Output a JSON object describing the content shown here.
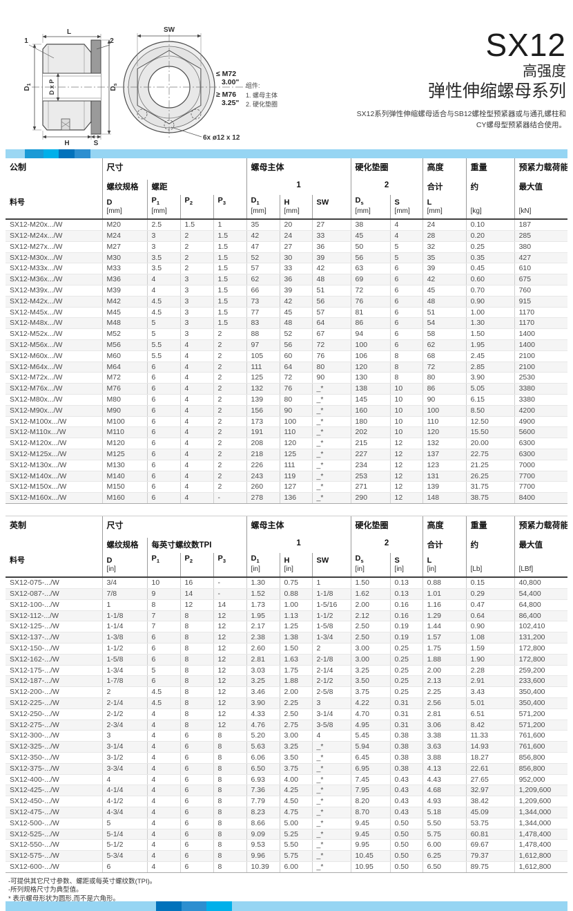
{
  "page": {
    "title": "SX12",
    "subtitle1": "高强度",
    "subtitle2": "弹性伸缩螺母系列",
    "description_line1": "SX12系列弹性伸缩螺母适合与SB12螺栓型预紧器或与通孔螺柱和",
    "description_line2": "CY螺母型预紧器结合使用。"
  },
  "drawing": {
    "dim_L": "L",
    "dim_SW": "SW",
    "callout_1": "1",
    "callout_2": "2",
    "dim_D1_main": "D",
    "dim_D1_sub": "1",
    "dim_DxP": "D x P",
    "dim_Ds_main": "D",
    "dim_Ds_sub": "s",
    "dim_H": "H",
    "dim_S": "S",
    "thread_small": "≤ M72",
    "thread_small_size": "3.00\"",
    "thread_large": "≥ M76",
    "thread_large_size": "3.25\"",
    "holes_note": "6x ø12 x 12",
    "components_title": "组件:",
    "component_1": "1. 螺母主体",
    "component_2": "2. 硬化垫圈"
  },
  "colors": {
    "bar_segments": [
      "#9bd7f3",
      "#1b9ad6",
      "#00b0ea",
      "#0272bb",
      "#2d8fd0",
      "#96d5f3"
    ],
    "header_rule": "#3f3f3f"
  },
  "metric_table": {
    "region_label": "公制",
    "part_col_label": "料号",
    "groups": [
      {
        "label": "尺寸",
        "span": 4
      },
      {
        "label": "螺母主体",
        "span": 3
      },
      {
        "label": "硬化垫圈",
        "span": 2
      },
      {
        "label": "高度",
        "span": 1
      },
      {
        "label": "重量",
        "span": 1
      },
      {
        "label": "预紧力载荷能力",
        "span": 1
      }
    ],
    "subgroups": [
      {
        "label": "螺纹规格",
        "span": 1
      },
      {
        "label": "螺距",
        "span": 3
      },
      {
        "label": "1",
        "span": 3,
        "center": true
      },
      {
        "label": "2",
        "span": 2,
        "center": true
      },
      {
        "label": "合计",
        "span": 1
      },
      {
        "label": "约",
        "span": 1
      },
      {
        "label": "最大值",
        "span": 1
      }
    ],
    "columns": [
      {
        "label": "料号",
        "sub": "",
        "unit": ""
      },
      {
        "label": "D",
        "sub": "",
        "unit": "[mm]"
      },
      {
        "label": "P",
        "sub": "1",
        "unit": "[mm]"
      },
      {
        "label": "P",
        "sub": "2",
        "unit": ""
      },
      {
        "label": "P",
        "sub": "3",
        "unit": ""
      },
      {
        "label": "D",
        "sub": "1",
        "unit": "[mm]"
      },
      {
        "label": "H",
        "sub": "",
        "unit": "[mm]"
      },
      {
        "label": "SW",
        "sub": "",
        "unit": ""
      },
      {
        "label": "D",
        "sub": "s",
        "unit": "[mm]"
      },
      {
        "label": "S",
        "sub": "",
        "unit": "[mm]"
      },
      {
        "label": "L",
        "sub": "",
        "unit": "[mm]"
      },
      {
        "label": "",
        "sub": "",
        "unit": "[kg]"
      },
      {
        "label": "",
        "sub": "",
        "unit": "[kN]"
      }
    ],
    "rows": [
      [
        "SX12-M20x.../W",
        "M20",
        "2.5",
        "1.5",
        "1",
        "35",
        "20",
        "27",
        "38",
        "4",
        "24",
        "0.10",
        "187"
      ],
      [
        "SX12-M24x.../W",
        "M24",
        "3",
        "2",
        "1.5",
        "42",
        "24",
        "33",
        "45",
        "4",
        "28",
        "0.20",
        "285"
      ],
      [
        "SX12-M27x.../W",
        "M27",
        "3",
        "2",
        "1.5",
        "47",
        "27",
        "36",
        "50",
        "5",
        "32",
        "0.25",
        "380"
      ],
      [
        "SX12-M30x.../W",
        "M30",
        "3.5",
        "2",
        "1.5",
        "52",
        "30",
        "39",
        "56",
        "5",
        "35",
        "0.35",
        "427"
      ],
      [
        "SX12-M33x.../W",
        "M33",
        "3.5",
        "2",
        "1.5",
        "57",
        "33",
        "42",
        "63",
        "6",
        "39",
        "0.45",
        "610"
      ],
      [
        "SX12-M36x.../W",
        "M36",
        "4",
        "3",
        "1.5",
        "62",
        "36",
        "48",
        "69",
        "6",
        "42",
        "0.60",
        "675"
      ],
      [
        "SX12-M39x.../W",
        "M39",
        "4",
        "3",
        "1.5",
        "66",
        "39",
        "51",
        "72",
        "6",
        "45",
        "0.70",
        "760"
      ],
      [
        "SX12-M42x.../W",
        "M42",
        "4.5",
        "3",
        "1.5",
        "73",
        "42",
        "56",
        "76",
        "6",
        "48",
        "0.90",
        "915"
      ],
      [
        "SX12-M45x.../W",
        "M45",
        "4.5",
        "3",
        "1.5",
        "77",
        "45",
        "57",
        "81",
        "6",
        "51",
        "1.00",
        "1170"
      ],
      [
        "SX12-M48x.../W",
        "M48",
        "5",
        "3",
        "1.5",
        "83",
        "48",
        "64",
        "86",
        "6",
        "54",
        "1.30",
        "1170"
      ],
      [
        "SX12-M52x.../W",
        "M52",
        "5",
        "3",
        "2",
        "88",
        "52",
        "67",
        "94",
        "6",
        "58",
        "1.50",
        "1400"
      ],
      [
        "SX12-M56x.../W",
        "M56",
        "5.5",
        "4",
        "2",
        "97",
        "56",
        "72",
        "100",
        "6",
        "62",
        "1.95",
        "1400"
      ],
      [
        "SX12-M60x.../W",
        "M60",
        "5.5",
        "4",
        "2",
        "105",
        "60",
        "76",
        "106",
        "8",
        "68",
        "2.45",
        "2100"
      ],
      [
        "SX12-M64x.../W",
        "M64",
        "6",
        "4",
        "2",
        "111",
        "64",
        "80",
        "120",
        "8",
        "72",
        "2.85",
        "2100"
      ],
      [
        "SX12-M72x.../W",
        "M72",
        "6",
        "4",
        "2",
        "125",
        "72",
        "90",
        "130",
        "8",
        "80",
        "3.90",
        "2530"
      ],
      [
        "SX12-M76x.../W",
        "M76",
        "6",
        "4",
        "2",
        "132",
        "76",
        "_*",
        "138",
        "10",
        "86",
        "5.05",
        "3380"
      ],
      [
        "SX12-M80x.../W",
        "M80",
        "6",
        "4",
        "2",
        "139",
        "80",
        "_*",
        "145",
        "10",
        "90",
        "6.15",
        "3380"
      ],
      [
        "SX12-M90x.../W",
        "M90",
        "6",
        "4",
        "2",
        "156",
        "90",
        "_*",
        "160",
        "10",
        "100",
        "8.50",
        "4200"
      ],
      [
        "SX12-M100x.../W",
        "M100",
        "6",
        "4",
        "2",
        "173",
        "100",
        "_*",
        "180",
        "10",
        "110",
        "12.50",
        "4900"
      ],
      [
        "SX12-M110x.../W",
        "M110",
        "6",
        "4",
        "2",
        "191",
        "110",
        "_*",
        "202",
        "10",
        "120",
        "15.50",
        "5600"
      ],
      [
        "SX12-M120x.../W",
        "M120",
        "6",
        "4",
        "2",
        "208",
        "120",
        "_*",
        "215",
        "12",
        "132",
        "20.00",
        "6300"
      ],
      [
        "SX12-M125x.../W",
        "M125",
        "6",
        "4",
        "2",
        "218",
        "125",
        "_*",
        "227",
        "12",
        "137",
        "22.75",
        "6300"
      ],
      [
        "SX12-M130x.../W",
        "M130",
        "6",
        "4",
        "2",
        "226",
        "111",
        "_*",
        "234",
        "12",
        "123",
        "21.25",
        "7000"
      ],
      [
        "SX12-M140x.../W",
        "M140",
        "6",
        "4",
        "2",
        "243",
        "119",
        "_*",
        "253",
        "12",
        "131",
        "26.25",
        "7700"
      ],
      [
        "SX12-M150x.../W",
        "M150",
        "6",
        "4",
        "2",
        "260",
        "127",
        "_*",
        "271",
        "12",
        "139",
        "31.75",
        "7700"
      ],
      [
        "SX12-M160x.../W",
        "M160",
        "6",
        "4",
        "-",
        "278",
        "136",
        "_*",
        "290",
        "12",
        "148",
        "38.75",
        "8400"
      ]
    ]
  },
  "imperial_table": {
    "region_label": "英制",
    "part_col_label": "料号",
    "groups": [
      {
        "label": "尺寸",
        "span": 4
      },
      {
        "label": "螺母主体",
        "span": 3
      },
      {
        "label": "硬化垫圈",
        "span": 2
      },
      {
        "label": "高度",
        "span": 1
      },
      {
        "label": "重量",
        "span": 1
      },
      {
        "label": "预紧力载荷能力",
        "span": 1
      }
    ],
    "subgroups": [
      {
        "label": "螺纹规格",
        "span": 1
      },
      {
        "label": "每英寸螺纹数TPI",
        "span": 3
      },
      {
        "label": "1",
        "span": 3,
        "center": true
      },
      {
        "label": "2",
        "span": 2,
        "center": true
      },
      {
        "label": "合计",
        "span": 1
      },
      {
        "label": "约",
        "span": 1
      },
      {
        "label": "最大值",
        "span": 1
      }
    ],
    "columns": [
      {
        "label": "料号",
        "sub": "",
        "unit": ""
      },
      {
        "label": "D",
        "sub": "",
        "unit": "[in]"
      },
      {
        "label": "P",
        "sub": "1",
        "unit": ""
      },
      {
        "label": "P",
        "sub": "2",
        "unit": ""
      },
      {
        "label": "P",
        "sub": "3",
        "unit": ""
      },
      {
        "label": "D",
        "sub": "1",
        "unit": "[in]"
      },
      {
        "label": "H",
        "sub": "",
        "unit": "[in]"
      },
      {
        "label": "SW",
        "sub": "",
        "unit": ""
      },
      {
        "label": "D",
        "sub": "s",
        "unit": "[in]"
      },
      {
        "label": "S",
        "sub": "",
        "unit": "[in]"
      },
      {
        "label": "L",
        "sub": "",
        "unit": "[in]"
      },
      {
        "label": "",
        "sub": "",
        "unit": "[Lb]"
      },
      {
        "label": "",
        "sub": "",
        "unit": "[LBf]"
      }
    ],
    "rows": [
      [
        "SX12-075-.../W",
        "3/4",
        "10",
        "16",
        "-",
        "1.30",
        "0.75",
        "1",
        "1.50",
        "0.13",
        "0.88",
        "0.15",
        "40,800"
      ],
      [
        "SX12-087-.../W",
        "7/8",
        "9",
        "14",
        "-",
        "1.52",
        "0.88",
        "1-1/8",
        "1.62",
        "0.13",
        "1.01",
        "0.29",
        "54,400"
      ],
      [
        "SX12-100-.../W",
        "1",
        "8",
        "12",
        "14",
        "1.73",
        "1.00",
        "1-5/16",
        "2.00",
        "0.16",
        "1.16",
        "0.47",
        "64,800"
      ],
      [
        "SX12-112-.../W",
        "1-1/8",
        "7",
        "8",
        "12",
        "1.95",
        "1.13",
        "1-1/2",
        "2.12",
        "0.16",
        "1.29",
        "0.64",
        "86,400"
      ],
      [
        "SX12-125-.../W",
        "1-1/4",
        "7",
        "8",
        "12",
        "2.17",
        "1.25",
        "1-5/8",
        "2.50",
        "0.19",
        "1.44",
        "0.90",
        "102,410"
      ],
      [
        "SX12-137-.../W",
        "1-3/8",
        "6",
        "8",
        "12",
        "2.38",
        "1.38",
        "1-3/4",
        "2.50",
        "0.19",
        "1.57",
        "1.08",
        "131,200"
      ],
      [
        "SX12-150-.../W",
        "1-1/2",
        "6",
        "8",
        "12",
        "2.60",
        "1.50",
        "2",
        "3.00",
        "0.25",
        "1.75",
        "1.59",
        "172,800"
      ],
      [
        "SX12-162-.../W",
        "1-5/8",
        "6",
        "8",
        "12",
        "2.81",
        "1.63",
        "2-1/8",
        "3.00",
        "0.25",
        "1.88",
        "1.90",
        "172,800"
      ],
      [
        "SX12-175-.../W",
        "1-3/4",
        "5",
        "8",
        "12",
        "3.03",
        "1.75",
        "2-1/4",
        "3.25",
        "0.25",
        "2.00",
        "2.28",
        "259,200"
      ],
      [
        "SX12-187-.../W",
        "1-7/8",
        "6",
        "8",
        "12",
        "3.25",
        "1.88",
        "2-1/2",
        "3.50",
        "0.25",
        "2.13",
        "2.91",
        "233,600"
      ],
      [
        "SX12-200-.../W",
        "2",
        "4.5",
        "8",
        "12",
        "3.46",
        "2.00",
        "2-5/8",
        "3.75",
        "0.25",
        "2.25",
        "3.43",
        "350,400"
      ],
      [
        "SX12-225-.../W",
        "2-1/4",
        "4.5",
        "8",
        "12",
        "3.90",
        "2.25",
        "3",
        "4.22",
        "0.31",
        "2.56",
        "5.01",
        "350,400"
      ],
      [
        "SX12-250-.../W",
        "2-1/2",
        "4",
        "8",
        "12",
        "4.33",
        "2.50",
        "3-1/4",
        "4.70",
        "0.31",
        "2.81",
        "6.51",
        "571,200"
      ],
      [
        "SX12-275-.../W",
        "2-3/4",
        "4",
        "8",
        "12",
        "4.76",
        "2.75",
        "3-5/8",
        "4.95",
        "0.31",
        "3.06",
        "8.42",
        "571,200"
      ],
      [
        "SX12-300-.../W",
        "3",
        "4",
        "6",
        "8",
        "5.20",
        "3.00",
        "4",
        "5.45",
        "0.38",
        "3.38",
        "11.33",
        "761,600"
      ],
      [
        "SX12-325-.../W",
        "3-1/4",
        "4",
        "6",
        "8",
        "5.63",
        "3.25",
        "_*",
        "5.94",
        "0.38",
        "3.63",
        "14.93",
        "761,600"
      ],
      [
        "SX12-350-.../W",
        "3-1/2",
        "4",
        "6",
        "8",
        "6.06",
        "3.50",
        "_*",
        "6.45",
        "0.38",
        "3.88",
        "18.27",
        "856,800"
      ],
      [
        "SX12-375-.../W",
        "3-3/4",
        "4",
        "6",
        "8",
        "6.50",
        "3.75",
        "_*",
        "6.95",
        "0.38",
        "4.13",
        "22.61",
        "856,800"
      ],
      [
        "SX12-400-.../W",
        "4",
        "4",
        "6",
        "8",
        "6.93",
        "4.00",
        "_*",
        "7.45",
        "0.43",
        "4.43",
        "27.65",
        "952,000"
      ],
      [
        "SX12-425-.../W",
        "4-1/4",
        "4",
        "6",
        "8",
        "7.36",
        "4.25",
        "_*",
        "7.95",
        "0.43",
        "4.68",
        "32.97",
        "1,209,600"
      ],
      [
        "SX12-450-.../W",
        "4-1/2",
        "4",
        "6",
        "8",
        "7.79",
        "4.50",
        "_*",
        "8.20",
        "0.43",
        "4.93",
        "38.42",
        "1,209,600"
      ],
      [
        "SX12-475-.../W",
        "4-3/4",
        "4",
        "6",
        "8",
        "8.23",
        "4.75",
        "_*",
        "8.70",
        "0.43",
        "5.18",
        "45.09",
        "1,344,000"
      ],
      [
        "SX12-500-.../W",
        "5",
        "4",
        "6",
        "8",
        "8.66",
        "5.00",
        "_*",
        "9.45",
        "0.50",
        "5.50",
        "53.75",
        "1,344,000"
      ],
      [
        "SX12-525-.../W",
        "5-1/4",
        "4",
        "6",
        "8",
        "9.09",
        "5.25",
        "_*",
        "9.45",
        "0.50",
        "5.75",
        "60.81",
        "1,478,400"
      ],
      [
        "SX12-550-.../W",
        "5-1/2",
        "4",
        "6",
        "8",
        "9.53",
        "5.50",
        "_*",
        "9.95",
        "0.50",
        "6.00",
        "69.67",
        "1,478,400"
      ],
      [
        "SX12-575-.../W",
        "5-3/4",
        "4",
        "6",
        "8",
        "9.96",
        "5.75",
        "_*",
        "10.45",
        "0.50",
        "6.25",
        "79.37",
        "1,612,800"
      ],
      [
        "SX12-600-.../W",
        "6",
        "4",
        "6",
        "8",
        "10.39",
        "6.00",
        "_*",
        "10.95",
        "0.50",
        "6.50",
        "89.75",
        "1,612,800"
      ]
    ]
  },
  "footnotes": [
    "-可提供其它尺寸参数、螺距或每英寸螺纹数(TPI)。",
    "-所列规格尺寸为典型值。",
    "* 表示螺母形状为圆形,而不是六角形。"
  ]
}
